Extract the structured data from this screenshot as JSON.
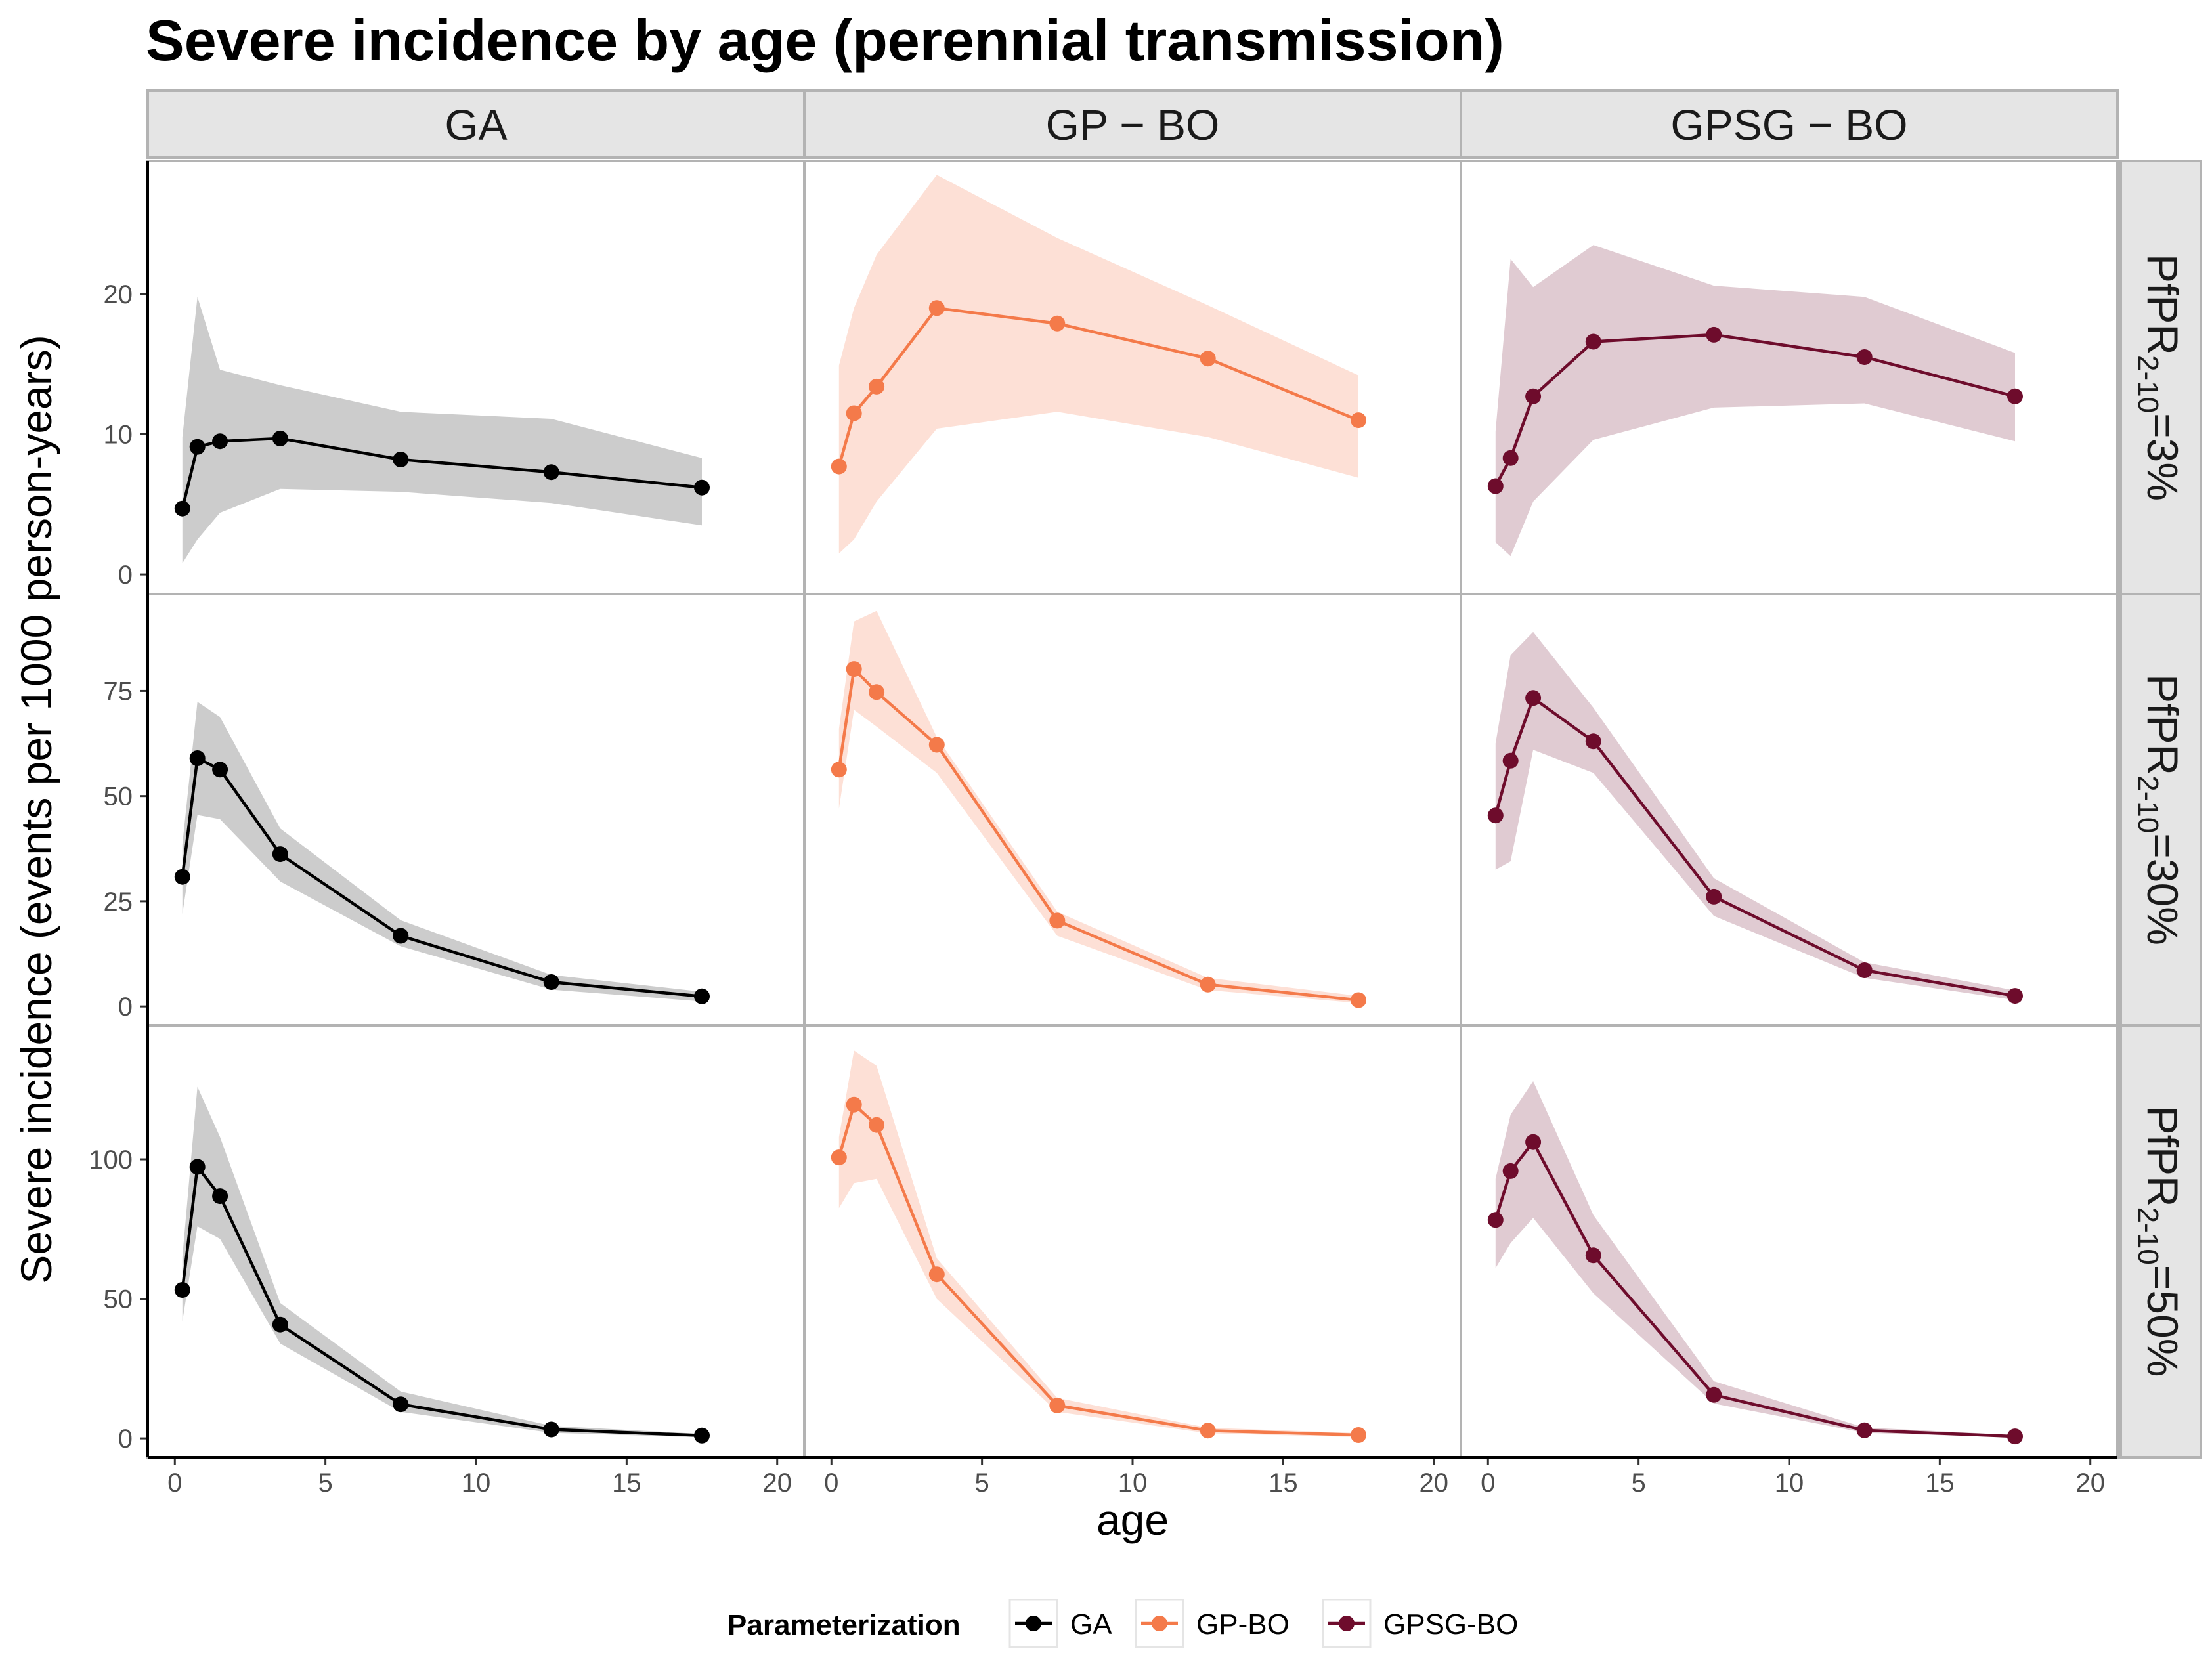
{
  "title": "Severe incidence by age (perennial transmission)",
  "colors": {
    "GA": "#000000",
    "GP-BO": "#f47a4a",
    "GPSG-BO": "#6e0c2c",
    "GA_band": "#cccccc",
    "GP-BO_band": "#fde0d6",
    "GPSG-BO_band": "#e0cbd2",
    "strip_fill": "#e5e5e5",
    "strip_border": "#b3b3b3",
    "panel_border": "#b3b3b3"
  },
  "chart_data": {
    "type": "line",
    "xlabel": "age",
    "ylabel": "Severe incidence (events per 1000 person-years)",
    "xlim": [
      -0.9,
      20.9
    ],
    "x_ticks": [
      0,
      5,
      10,
      15,
      20
    ],
    "facet_columns": [
      "GA",
      "GP − BO",
      "GPSG − BO"
    ],
    "facet_rows": [
      {
        "label": "PfPR",
        "sub": "2-10",
        "suffix": "=3%",
        "ylim": [
          -1.4,
          29.5
        ],
        "y_ticks": [
          0,
          10,
          20
        ]
      },
      {
        "label": "PfPR",
        "sub": "2-10",
        "suffix": "=30%",
        "ylim": [
          -4.5,
          98
        ],
        "y_ticks": [
          0,
          25,
          50,
          75
        ]
      },
      {
        "label": "PfPR",
        "sub": "2-10",
        "suffix": "=50%",
        "ylim": [
          -6.8,
          148
        ],
        "y_ticks": [
          0,
          50,
          100
        ]
      }
    ],
    "x": [
      0.25,
      0.75,
      1.5,
      3.5,
      7.5,
      12.5,
      17.5
    ],
    "series": [
      {
        "name": "GA",
        "panels": [
          {
            "y": [
              4.7,
              9.1,
              9.5,
              9.7,
              8.2,
              7.3,
              6.2
            ],
            "lower": [
              0.8,
              2.5,
              4.4,
              6.1,
              5.9,
              5.1,
              3.5
            ],
            "upper": [
              9.8,
              19.8,
              14.6,
              13.5,
              11.6,
              11.1,
              8.3
            ]
          },
          {
            "y": [
              30.8,
              59.0,
              56.3,
              36.2,
              16.8,
              5.8,
              2.4
            ],
            "lower": [
              22.0,
              45.5,
              44.5,
              29.7,
              14.3,
              4.0,
              1.2
            ],
            "upper": [
              38.5,
              72.4,
              68.8,
              42.3,
              20.5,
              7.5,
              3.5
            ]
          },
          {
            "y": [
              53.2,
              97.3,
              86.8,
              40.8,
              12.2,
              3.2,
              1.0
            ],
            "lower": [
              42.0,
              76.0,
              71.5,
              34.0,
              9.5,
              2.0,
              0.4
            ],
            "upper": [
              65.0,
              126.0,
              108.0,
              48.5,
              16.8,
              4.5,
              1.6
            ]
          }
        ]
      },
      {
        "name": "GP-BO",
        "panels": [
          {
            "y": [
              7.7,
              11.5,
              13.4,
              19.0,
              17.9,
              15.4,
              11.0
            ],
            "lower": [
              1.5,
              2.5,
              5.2,
              10.4,
              11.6,
              9.8,
              6.9
            ],
            "upper": [
              14.9,
              19.0,
              22.8,
              28.5,
              24.0,
              19.2,
              14.2
            ]
          },
          {
            "y": [
              56.3,
              80.2,
              74.7,
              62.2,
              20.4,
              5.2,
              1.5
            ],
            "lower": [
              47.0,
              70.5,
              66.5,
              55.5,
              16.8,
              3.9,
              0.8
            ],
            "upper": [
              66.0,
              91.5,
              94.0,
              64.0,
              22.5,
              6.8,
              2.5
            ]
          },
          {
            "y": [
              100.7,
              119.6,
              112.3,
              58.8,
              11.8,
              2.8,
              1.2
            ],
            "lower": [
              82.5,
              91.5,
              93.0,
              50.0,
              9.5,
              1.8,
              0.5
            ],
            "upper": [
              108.0,
              139.0,
              133.5,
              64.5,
              14.5,
              3.8,
              1.9
            ]
          }
        ]
      },
      {
        "name": "GPSG-BO",
        "panels": [
          {
            "y": [
              6.3,
              8.3,
              12.7,
              16.6,
              17.1,
              15.5,
              12.7
            ],
            "lower": [
              2.3,
              1.3,
              5.2,
              9.6,
              11.9,
              12.2,
              9.5
            ],
            "upper": [
              10.2,
              22.5,
              20.5,
              23.5,
              20.6,
              19.8,
              15.8
            ]
          },
          {
            "y": [
              45.4,
              58.4,
              73.3,
              63.0,
              26.1,
              8.6,
              2.5
            ],
            "lower": [
              32.5,
              34.5,
              61.0,
              55.5,
              21.5,
              6.8,
              1.5
            ],
            "upper": [
              62.5,
              83.5,
              89.0,
              71.0,
              30.5,
              10.5,
              3.8
            ]
          },
          {
            "y": [
              78.3,
              95.8,
              106.2,
              65.6,
              15.6,
              2.9,
              0.7
            ],
            "lower": [
              61.0,
              70.0,
              79.0,
              52.0,
              12.5,
              2.0,
              0.3
            ],
            "upper": [
              93.0,
              116.0,
              128.0,
              80.0,
              20.5,
              3.9,
              1.2
            ]
          }
        ]
      }
    ],
    "legend": {
      "title": "Parameterization",
      "items": [
        "GA",
        "GP-BO",
        "GPSG-BO"
      ],
      "position": "bottom"
    },
    "grid": false
  }
}
